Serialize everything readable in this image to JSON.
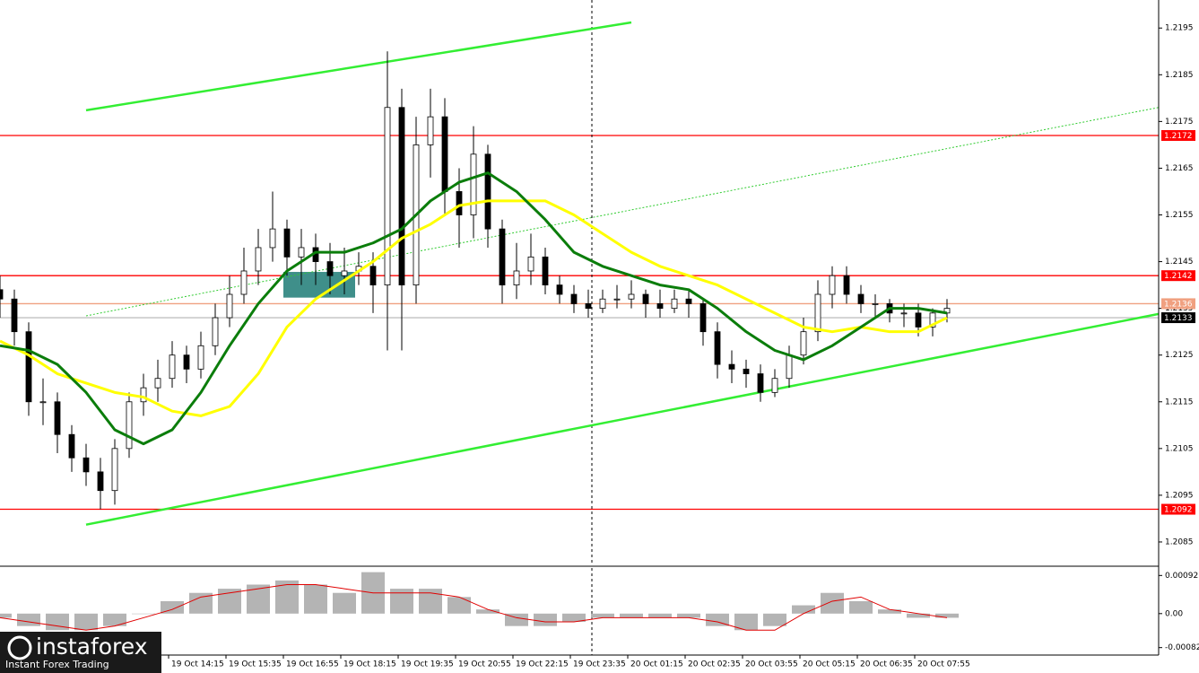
{
  "chart_data": [
    {
      "type": "candlestick",
      "xlim": [
        0,
        323
      ],
      "ylim": [
        1.208,
        1.2201
      ],
      "yticks": [
        1.2085,
        1.2095,
        1.2105,
        1.2115,
        1.2125,
        1.2135,
        1.2145,
        1.2155,
        1.2165,
        1.2175,
        1.2185,
        1.2195
      ],
      "xticks": [
        {
          "value": 47,
          "label": "19 Oct 14:15"
        },
        {
          "value": 63,
          "label": "19 Oct 15:35"
        },
        {
          "value": 79,
          "label": "19 Oct 16:55"
        },
        {
          "value": 95,
          "label": "19 Oct 18:15"
        },
        {
          "value": 111,
          "label": "19 Oct 19:35"
        },
        {
          "value": 127,
          "label": "19 Oct 20:55"
        },
        {
          "value": 143,
          "label": "19 Oct 22:15"
        },
        {
          "value": 159,
          "label": "19 Oct 23:35"
        },
        {
          "value": 175,
          "label": "20 Oct 01:15"
        },
        {
          "value": 191,
          "label": "20 Oct 02:35"
        },
        {
          "value": 207,
          "label": "20 Oct 03:55"
        },
        {
          "value": 223,
          "label": "20 Oct 05:15"
        },
        {
          "value": 239,
          "label": "20 Oct 06:35"
        },
        {
          "value": 255,
          "label": "20 Oct 07:55"
        }
      ],
      "x": [
        0,
        4,
        8,
        12,
        16,
        20,
        24,
        28,
        32,
        36,
        40,
        44,
        48,
        52,
        56,
        60,
        64,
        68,
        72,
        76,
        80,
        84,
        88,
        92,
        96,
        100,
        104,
        108,
        112,
        116,
        120,
        124,
        128,
        132,
        136,
        140,
        144,
        148,
        152,
        156,
        160,
        164,
        168,
        172,
        176,
        180,
        184,
        188,
        192,
        196,
        200,
        204,
        208,
        212,
        216,
        220,
        224,
        228,
        232,
        236,
        240,
        244,
        248,
        252,
        256,
        260,
        264
      ],
      "open": [
        1.2139,
        1.2137,
        1.213,
        1.2115,
        1.2115,
        1.2108,
        1.2103,
        1.21,
        1.2096,
        1.2105,
        1.2115,
        1.2118,
        1.212,
        1.2125,
        1.2122,
        1.2127,
        1.2133,
        1.2138,
        1.2143,
        1.2148,
        1.2152,
        1.2146,
        1.2148,
        1.2145,
        1.2142,
        1.2143,
        1.2144,
        1.214,
        1.2178,
        1.214,
        1.217,
        1.2176,
        1.216,
        1.2155,
        1.2168,
        1.2152,
        1.214,
        1.2143,
        1.2146,
        1.214,
        1.2138,
        1.2136,
        1.2135,
        1.2137,
        1.2137,
        1.2138,
        1.2136,
        1.2135,
        1.2137,
        1.2136,
        1.213,
        1.2123,
        1.2122,
        1.2121,
        1.2117,
        1.212,
        1.2125,
        1.213,
        1.2138,
        1.2142,
        1.2138,
        1.2136,
        1.2136,
        1.2134,
        1.2134,
        1.2131,
        1.2134
      ],
      "high": [
        1.2142,
        1.2139,
        1.2132,
        1.212,
        1.2117,
        1.211,
        1.2106,
        1.2103,
        1.2107,
        1.2117,
        1.2121,
        1.2124,
        1.2128,
        1.2127,
        1.213,
        1.2136,
        1.2142,
        1.2148,
        1.2152,
        1.216,
        1.2154,
        1.2152,
        1.2151,
        1.2149,
        1.2148,
        1.2147,
        1.2147,
        1.219,
        1.2182,
        1.2176,
        1.2182,
        1.218,
        1.2165,
        1.2174,
        1.217,
        1.2154,
        1.2149,
        1.2151,
        1.2148,
        1.2142,
        1.214,
        1.2139,
        1.2139,
        1.214,
        1.2141,
        1.2139,
        1.2139,
        1.2139,
        1.2139,
        1.2137,
        1.2132,
        1.2126,
        1.2124,
        1.2123,
        1.2122,
        1.2127,
        1.2133,
        1.2141,
        1.2144,
        1.2144,
        1.214,
        1.2138,
        1.2137,
        1.2136,
        1.2136,
        1.2135,
        1.2137
      ],
      "low": [
        1.2133,
        1.2127,
        1.2112,
        1.211,
        1.2104,
        1.21,
        1.2097,
        1.2092,
        1.2093,
        1.2103,
        1.2112,
        1.2115,
        1.2118,
        1.2119,
        1.212,
        1.2125,
        1.2131,
        1.2136,
        1.214,
        1.2145,
        1.2142,
        1.214,
        1.214,
        1.2138,
        1.2138,
        1.214,
        1.2134,
        1.2126,
        1.2126,
        1.2136,
        1.2163,
        1.2155,
        1.2148,
        1.215,
        1.2148,
        1.2136,
        1.2137,
        1.214,
        1.2138,
        1.2136,
        1.2134,
        1.2133,
        1.2134,
        1.2135,
        1.2135,
        1.2133,
        1.2133,
        1.2134,
        1.2133,
        1.2127,
        1.212,
        1.2119,
        1.2118,
        1.2115,
        1.2116,
        1.2118,
        1.2123,
        1.2128,
        1.2135,
        1.2136,
        1.2134,
        1.2133,
        1.2132,
        1.2131,
        1.2129,
        1.2129,
        1.2132
      ],
      "close": [
        1.2137,
        1.213,
        1.2115,
        1.2115,
        1.2108,
        1.2103,
        1.21,
        1.2096,
        1.2105,
        1.2115,
        1.2118,
        1.212,
        1.2125,
        1.2122,
        1.2127,
        1.2133,
        1.2138,
        1.2143,
        1.2148,
        1.2152,
        1.2146,
        1.2148,
        1.2145,
        1.2142,
        1.2143,
        1.2144,
        1.214,
        1.2178,
        1.214,
        1.217,
        1.2176,
        1.216,
        1.2155,
        1.2168,
        1.2152,
        1.214,
        1.2143,
        1.2146,
        1.214,
        1.2138,
        1.2136,
        1.2135,
        1.2137,
        1.2137,
        1.2138,
        1.2136,
        1.2135,
        1.2137,
        1.2136,
        1.213,
        1.2123,
        1.2122,
        1.2121,
        1.2117,
        1.212,
        1.2125,
        1.213,
        1.2138,
        1.2142,
        1.2138,
        1.2136,
        1.2136,
        1.2134,
        1.2134,
        1.2131,
        1.2134,
        1.2135
      ],
      "series": [
        {
          "color": "#ffff00",
          "x": [
            0,
            8,
            16,
            24,
            32,
            40,
            48,
            56,
            64,
            72,
            80,
            88,
            96,
            104,
            112,
            120,
            128,
            136,
            144,
            152,
            160,
            168,
            176,
            184,
            192,
            200,
            208,
            216,
            224,
            232,
            240,
            248,
            256,
            264
          ],
          "values": [
            1.2128,
            1.2125,
            1.2121,
            1.2119,
            1.2117,
            1.2116,
            1.2113,
            1.2112,
            1.2114,
            1.2121,
            1.2131,
            1.2137,
            1.2141,
            1.2145,
            1.215,
            1.2153,
            1.2157,
            1.2158,
            1.2158,
            1.2158,
            1.2155,
            1.2151,
            1.2147,
            1.2144,
            1.2142,
            1.214,
            1.2137,
            1.2134,
            1.2131,
            1.213,
            1.2131,
            1.213,
            1.213,
            1.2133
          ]
        },
        {
          "color": "#0b7d0b",
          "x": [
            0,
            8,
            16,
            24,
            32,
            40,
            48,
            56,
            64,
            72,
            80,
            88,
            96,
            104,
            112,
            120,
            128,
            136,
            144,
            152,
            160,
            168,
            176,
            184,
            192,
            200,
            208,
            216,
            224,
            232,
            240,
            248,
            256,
            264
          ],
          "values": [
            1.2127,
            1.2126,
            1.2123,
            1.2117,
            1.2109,
            1.2106,
            1.2109,
            1.2117,
            1.2127,
            1.2136,
            1.2143,
            1.2147,
            1.2147,
            1.2149,
            1.2152,
            1.2158,
            1.2162,
            1.2164,
            1.216,
            1.2154,
            1.2147,
            1.2144,
            1.2142,
            1.214,
            1.2139,
            1.2135,
            1.213,
            1.2126,
            1.2124,
            1.2127,
            1.2131,
            1.2135,
            1.2135,
            1.2134
          ]
        }
      ],
      "trendlines": [
        {
          "color": "#33ee33",
          "style": "solid",
          "x": [
            24,
            176
          ],
          "y": [
            1.21774,
            1.21962
          ]
        },
        {
          "color": "#33ee33",
          "style": "solid",
          "x": [
            24,
            323
          ],
          "y": [
            1.20887,
            1.21338
          ]
        },
        {
          "color": "#33cc33",
          "style": "dotted",
          "x": [
            24,
            323
          ],
          "y": [
            1.21334,
            1.2178
          ]
        }
      ],
      "zone": {
        "color": "#3f8f8a",
        "x": [
          79,
          99
        ],
        "y": [
          1.21373,
          1.21428
        ]
      },
      "marker_x": 165,
      "levels": [
        {
          "value": 1.2172,
          "color": "#ff0000"
        },
        {
          "value": 1.2142,
          "color": "#ff0000"
        },
        {
          "value": 1.2136,
          "color": "#f0a080"
        },
        {
          "value": 1.2092,
          "color": "#ff0000"
        },
        {
          "value": 1.2133,
          "color": "#c0c0c0"
        }
      ]
    },
    {
      "type": "bar",
      "xlim": [
        0,
        323
      ],
      "ylim": [
        -0.001,
        0.0011
      ],
      "yticks": [
        0.00092,
        {
          "value": 0,
          "label": "0.00"
        },
        -0.00082
      ],
      "color": "#b4b4b4",
      "x": [
        0,
        8,
        16,
        24,
        32,
        40,
        48,
        56,
        64,
        72,
        80,
        88,
        96,
        104,
        112,
        120,
        128,
        136,
        144,
        152,
        160,
        168,
        176,
        184,
        192,
        200,
        208,
        216,
        224,
        232,
        240,
        248,
        256,
        264
      ],
      "values": [
        -0.0001,
        -0.0003,
        -0.0004,
        -0.0004,
        -0.0003,
        0.0,
        0.0003,
        0.0005,
        0.0006,
        0.0007,
        0.0008,
        0.0007,
        0.0005,
        0.001,
        0.0006,
        0.0006,
        0.0004,
        0.0001,
        -0.0003,
        -0.0003,
        -0.0002,
        -0.0001,
        -0.0001,
        -0.0001,
        -0.0001,
        -0.0003,
        -0.0004,
        -0.0003,
        0.0002,
        0.0005,
        0.0003,
        0.0001,
        -0.0001,
        -0.0001
      ],
      "series": [
        {
          "color": "#e00000",
          "values": [
            -0.0001,
            -0.0002,
            -0.0003,
            -0.0004,
            -0.0003,
            -0.0001,
            0.0001,
            0.0004,
            0.0005,
            0.0006,
            0.0007,
            0.0007,
            0.0006,
            0.0005,
            0.0005,
            0.0005,
            0.0004,
            0.0001,
            -0.0001,
            -0.0002,
            -0.0002,
            -0.0001,
            -0.0001,
            -0.0001,
            -0.0001,
            -0.0002,
            -0.0004,
            -0.0004,
            0.0,
            0.0003,
            0.0004,
            0.0001,
            0.0,
            -0.0001
          ]
        }
      ]
    }
  ],
  "logo": {
    "name": "instaforex",
    "tagline": "Instant Forex Trading"
  }
}
